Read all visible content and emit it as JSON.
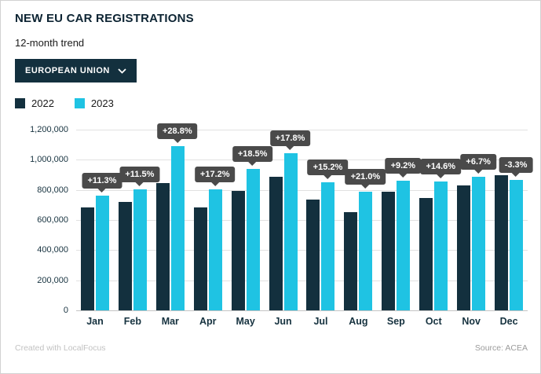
{
  "header": {
    "title": "NEW EU CAR REGISTRATIONS",
    "subtitle": "12-month trend"
  },
  "filter": {
    "label": "EUROPEAN UNION"
  },
  "colors": {
    "series_2022": "#13303e",
    "series_2023": "#1fc3e3",
    "badge": "#4a4a4a",
    "accent_dark": "#13303e"
  },
  "chart_data": {
    "type": "bar",
    "title": "NEW EU CAR REGISTRATIONS",
    "subtitle": "12-month trend",
    "categories": [
      "Jan",
      "Feb",
      "Mar",
      "Apr",
      "May",
      "Jun",
      "Jul",
      "Aug",
      "Sep",
      "Oct",
      "Nov",
      "Dec"
    ],
    "series": [
      {
        "name": "2022",
        "color": "#13303e",
        "values": [
          683000,
          719000,
          844000,
          686000,
          792000,
          887000,
          738000,
          650000,
          788000,
          746000,
          830000,
          897000
        ]
      },
      {
        "name": "2023",
        "color": "#1fc3e3",
        "values": [
          760000,
          802000,
          1088000,
          804000,
          939000,
          1045000,
          851000,
          787000,
          861000,
          855000,
          886000,
          867000
        ]
      }
    ],
    "point_labels": [
      "+11.3%",
      "+11.5%",
      "+28.8%",
      "+17.2%",
      "+18.5%",
      "+17.8%",
      "+15.2%",
      "+21.0%",
      "+9.2%",
      "+14.6%",
      "+6.7%",
      "-3.3%"
    ],
    "ylim": [
      0,
      1200000
    ],
    "yticks": [
      "1,200,000",
      "1,000,000",
      "800,000",
      "600,000",
      "400,000",
      "200,000",
      "0"
    ],
    "grid": true,
    "legend_position": "top-left"
  },
  "footer": {
    "credit": "Created with LocalFocus",
    "source": "Source:  ACEA"
  }
}
